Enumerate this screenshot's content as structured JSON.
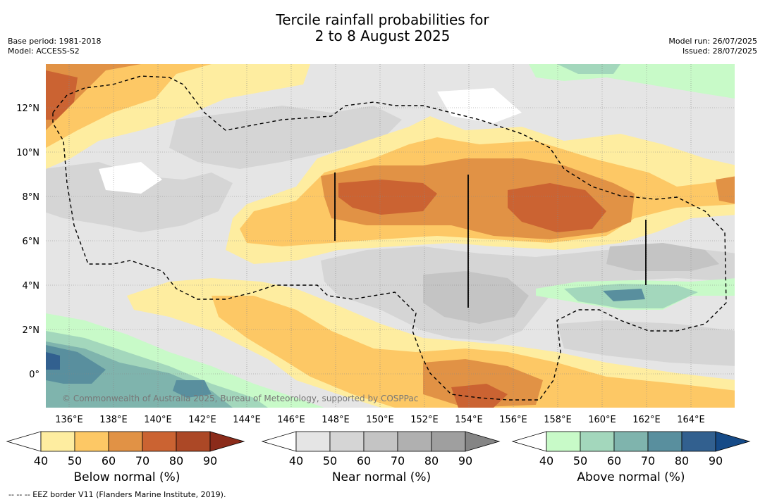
{
  "title_line1": "Tercile rainfall probabilities for",
  "title_line2": "2 to 8 August 2025",
  "meta_left": {
    "base_period": "Base period: 1981-2018",
    "model": "Model: ACCESS-S2"
  },
  "meta_right": {
    "model_run": "Model run: 26/07/2025",
    "issued": "Issued: 28/07/2025"
  },
  "lon_labels": [
    "136°E",
    "138°E",
    "140°E",
    "142°E",
    "144°E",
    "146°E",
    "148°E",
    "150°E",
    "152°E",
    "154°E",
    "156°E",
    "158°E",
    "160°E",
    "162°E",
    "164°E"
  ],
  "lat_labels": [
    "12°N",
    "10°N",
    "8°N",
    "6°N",
    "4°N",
    "2°N",
    "0°"
  ],
  "copyright": "© Commonwealth of Australia 2025, Bureau of Meteorology, supported by COSPPac",
  "colorbars": [
    {
      "label": "Below normal (%)",
      "ticks": [
        "40",
        "50",
        "60",
        "70",
        "80",
        "90"
      ],
      "colors": [
        "#ffffff",
        "#feeda0",
        "#fdc865",
        "#e19245",
        "#cb6332",
        "#ac4826",
        "#8b2b1a"
      ]
    },
    {
      "label": "Near normal (%)",
      "ticks": [
        "40",
        "50",
        "60",
        "70",
        "80",
        "90"
      ],
      "colors": [
        "#ffffff",
        "#e5e5e5",
        "#d5d5d5",
        "#c4c4c4",
        "#b0b0b0",
        "#9f9f9f",
        "#858585"
      ]
    },
    {
      "label": "Above normal (%)",
      "ticks": [
        "40",
        "50",
        "60",
        "70",
        "80",
        "90"
      ],
      "colors": [
        "#ffffff",
        "#c8fac8",
        "#a3d7bc",
        "#7fb4ad",
        "#598f9e",
        "#32608f",
        "#154a87"
      ]
    }
  ],
  "footnote": "--  --  -- EEZ border V11 (Flanders Marine Institute, 2019)."
}
